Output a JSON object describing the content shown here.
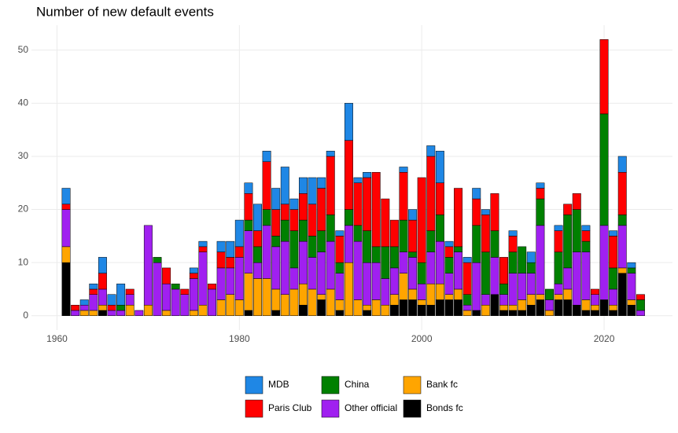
{
  "chart_data": {
    "type": "stacked_bar",
    "title": "Number of new default events",
    "x": [
      1961,
      1962,
      1963,
      1964,
      1965,
      1966,
      1967,
      1968,
      1969,
      1970,
      1971,
      1972,
      1973,
      1974,
      1975,
      1976,
      1977,
      1978,
      1979,
      1980,
      1981,
      1982,
      1983,
      1984,
      1985,
      1986,
      1987,
      1988,
      1989,
      1990,
      1991,
      1992,
      1993,
      1994,
      1995,
      1996,
      1997,
      1998,
      1999,
      2000,
      2001,
      2002,
      2003,
      2004,
      2005,
      2006,
      2007,
      2008,
      2009,
      2010,
      2011,
      2012,
      2013,
      2014,
      2015,
      2016,
      2017,
      2018,
      2019,
      2020,
      2021,
      2022,
      2023,
      2024
    ],
    "series": [
      {
        "name": "MDB",
        "color": "#1f87e5",
        "values": [
          3,
          0,
          1,
          1,
          3,
          2,
          4,
          0,
          0,
          0,
          0,
          0,
          0,
          0,
          1,
          1,
          0,
          2,
          3,
          5,
          2,
          5,
          2,
          4,
          7,
          2,
          3,
          5,
          2,
          1,
          1,
          7,
          1,
          1,
          0,
          0,
          0,
          1,
          2,
          0,
          2,
          6,
          1,
          0,
          1,
          2,
          1,
          0,
          0,
          1,
          0,
          2,
          1,
          0,
          1,
          0,
          0,
          1,
          0,
          0,
          1,
          3,
          1,
          0
        ]
      },
      {
        "name": "Paris Club",
        "color": "#ff0000",
        "values": [
          1,
          1,
          0,
          1,
          3,
          1,
          0,
          1,
          0,
          0,
          0,
          3,
          0,
          1,
          1,
          1,
          1,
          3,
          2,
          2,
          5,
          3,
          9,
          5,
          3,
          4,
          5,
          6,
          8,
          11,
          5,
          13,
          8,
          10,
          14,
          9,
          5,
          9,
          6,
          16,
          14,
          6,
          2,
          11,
          6,
          5,
          7,
          7,
          5,
          3,
          0,
          0,
          2,
          0,
          4,
          2,
          3,
          2,
          1,
          14,
          6,
          8,
          0,
          1
        ]
      },
      {
        "name": "China",
        "color": "#008000",
        "values": [
          0,
          0,
          0,
          0,
          0,
          0,
          1,
          0,
          0,
          0,
          1,
          0,
          1,
          0,
          0,
          0,
          0,
          0,
          0,
          0,
          2,
          3,
          3,
          2,
          4,
          7,
          4,
          4,
          4,
          5,
          2,
          3,
          3,
          6,
          3,
          6,
          4,
          6,
          1,
          4,
          4,
          5,
          3,
          1,
          2,
          7,
          8,
          5,
          2,
          4,
          5,
          2,
          5,
          2,
          6,
          10,
          8,
          2,
          0,
          21,
          4,
          2,
          1,
          2
        ]
      },
      {
        "name": "Other official",
        "color": "#a020f0",
        "values": [
          7,
          1,
          1,
          3,
          3,
          1,
          1,
          2,
          1,
          15,
          10,
          5,
          5,
          4,
          6,
          10,
          5,
          6,
          5,
          8,
          8,
          3,
          10,
          8,
          10,
          4,
          8,
          6,
          8,
          9,
          5,
          7,
          11,
          8,
          7,
          5,
          5,
          4,
          6,
          3,
          6,
          8,
          4,
          7,
          1,
          9,
          2,
          7,
          2,
          6,
          5,
          4,
          13,
          2,
          2,
          4,
          10,
          9,
          2,
          14,
          3,
          8,
          5,
          1
        ]
      },
      {
        "name": "Bank fc",
        "color": "#ffa500",
        "values": [
          3,
          0,
          1,
          1,
          1,
          0,
          0,
          2,
          0,
          2,
          0,
          1,
          0,
          0,
          1,
          2,
          0,
          3,
          4,
          3,
          7,
          7,
          7,
          4,
          4,
          5,
          4,
          5,
          1,
          5,
          2,
          10,
          3,
          1,
          3,
          2,
          2,
          5,
          2,
          1,
          4,
          3,
          1,
          2,
          1,
          0,
          2,
          0,
          1,
          1,
          2,
          2,
          1,
          1,
          1,
          2,
          0,
          2,
          1,
          0,
          1,
          1,
          1,
          0
        ]
      },
      {
        "name": "Bonds fc",
        "color": "#000000",
        "values": [
          10,
          0,
          0,
          0,
          1,
          0,
          0,
          0,
          0,
          0,
          0,
          0,
          0,
          0,
          0,
          0,
          0,
          0,
          0,
          0,
          1,
          0,
          0,
          1,
          0,
          0,
          2,
          0,
          3,
          0,
          1,
          0,
          0,
          1,
          0,
          0,
          2,
          3,
          3,
          2,
          2,
          3,
          3,
          3,
          0,
          1,
          0,
          4,
          1,
          1,
          1,
          2,
          3,
          0,
          3,
          3,
          2,
          1,
          1,
          3,
          1,
          8,
          2,
          0
        ]
      }
    ],
    "xlim": [
      1957.2,
      2027.5
    ],
    "xticks": [
      1960,
      1980,
      2000,
      2020
    ],
    "ylim": [
      -2.7,
      54.7
    ],
    "yticks": [
      0,
      10,
      20,
      30,
      40,
      50
    ],
    "grid": true,
    "legend": "bottom"
  }
}
